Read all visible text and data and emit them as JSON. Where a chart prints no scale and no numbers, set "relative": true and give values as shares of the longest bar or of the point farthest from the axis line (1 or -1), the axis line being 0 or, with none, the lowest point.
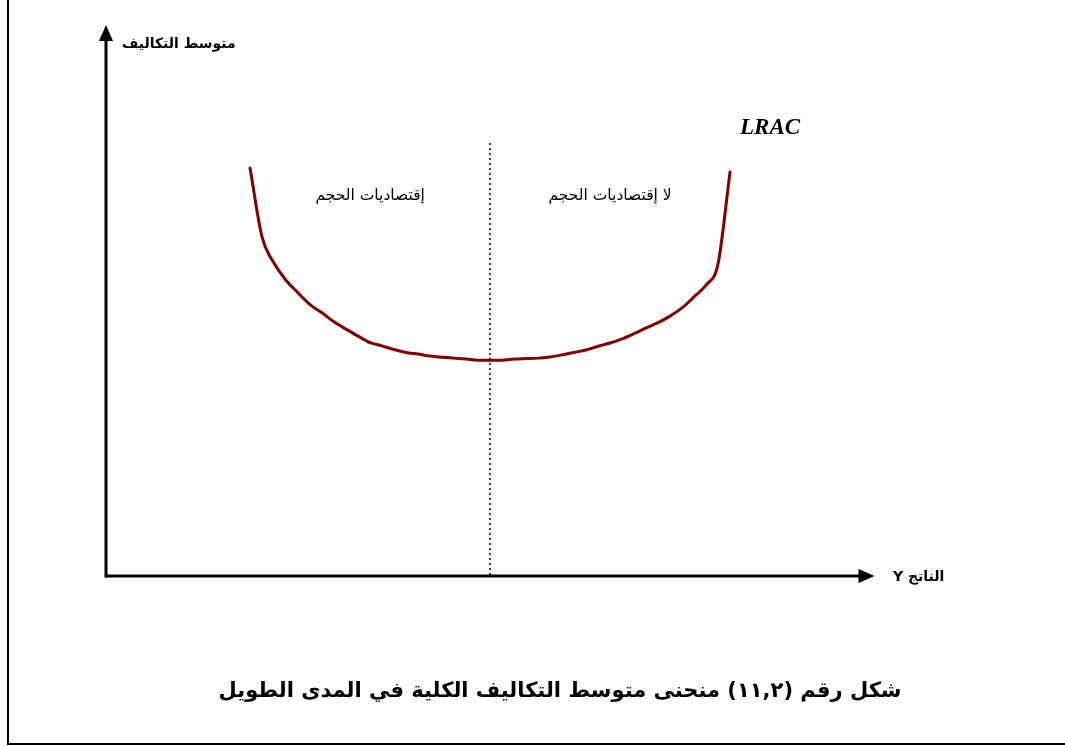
{
  "chart_data": {
    "type": "line",
    "title": "شكل رقم (١١,٢) منحنى متوسط التكاليف الكلية في المدى الطويل",
    "xlabel": "الناتج Y",
    "annotations": [
      "متوسط التكاليف",
      "إقتصاديات الحجم",
      "لا إقتصاديات الحجم"
    ],
    "relative": true,
    "categories": [
      null,
      null,
      null,
      null,
      null,
      null,
      null,
      null,
      null,
      null,
      null,
      null,
      null,
      null,
      null,
      null,
      null,
      null,
      null,
      null,
      null,
      null,
      null,
      null,
      null,
      null,
      null,
      null,
      null,
      null,
      null,
      null,
      null,
      null,
      null,
      null,
      null,
      null,
      null,
      null,
      null,
      null,
      null,
      null,
      null,
      null,
      null,
      null,
      null,
      null,
      null,
      null,
      null,
      null,
      null,
      null,
      null,
      null,
      null,
      null,
      null,
      null,
      null,
      null,
      null
    ],
    "series": [
      {
        "name": "LRAC",
        "color": "#800000",
        "values": [
          null,
          null,
          null,
          null,
          null,
          null,
          null,
          null,
          null,
          null,
          null,
          null,
          1,
          0.831,
          0.767,
          0.725,
          0.694,
          0.665,
          0.645,
          0.623,
          0.605,
          0.588,
          0.572,
          0.564,
          0.555,
          0.548,
          0.544,
          0.539,
          0.536,
          0.534,
          0.532,
          0.529,
          0.529,
          0.529,
          0.532,
          0.533,
          0.534,
          0.537,
          0.542,
          0.548,
          0.554,
          0.563,
          0.571,
          0.581,
          0.594,
          0.608,
          0.621,
          0.637,
          0.657,
          0.684,
          0.713,
          0.765,
          0.99,
          null,
          null,
          null,
          null,
          null,
          null,
          null,
          null,
          null,
          null,
          null,
          null
        ]
      }
    ]
  }
}
